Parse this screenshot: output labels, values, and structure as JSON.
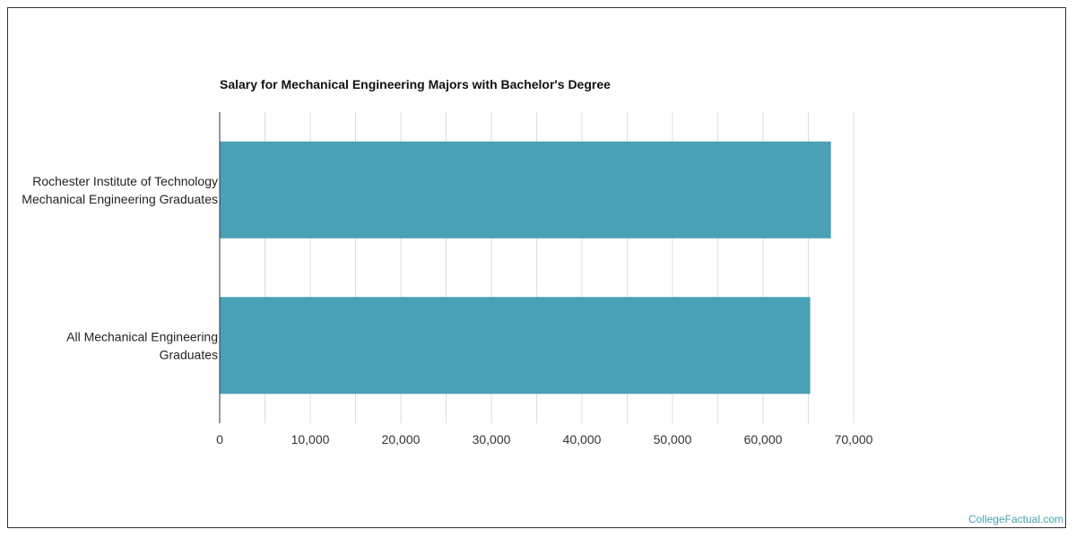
{
  "chart_data": {
    "type": "bar",
    "orientation": "horizontal",
    "title": "Salary for Mechanical Engineering Majors with Bachelor's Degree",
    "categories": [
      [
        "Rochester Institute of Technology",
        "Mechanical Engineering Graduates"
      ],
      [
        "All Mechanical Engineering",
        "Graduates"
      ]
    ],
    "values": [
      67500,
      65200
    ],
    "xlim": [
      0,
      70000
    ],
    "xticks": [
      0,
      10000,
      20000,
      30000,
      40000,
      50000,
      60000,
      70000
    ],
    "xtick_labels": [
      "0",
      "10,000",
      "20,000",
      "30,000",
      "40,000",
      "50,000",
      "60,000",
      "70,000"
    ],
    "grid": true,
    "bar_color": "#4aa0b5",
    "grid_color": "#dddddd",
    "axis_color": "#333333"
  },
  "footer": {
    "watermark": "CollegeFactual.com"
  }
}
